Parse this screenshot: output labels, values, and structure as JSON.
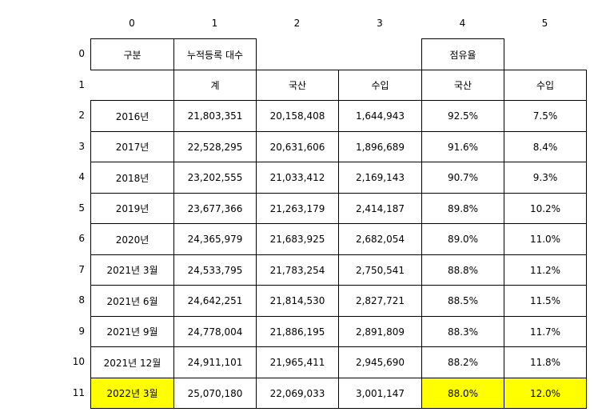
{
  "column_indices": [
    "0",
    "1",
    "2",
    "3",
    "4",
    "5"
  ],
  "row_indices": [
    "0",
    "1",
    "2",
    "3",
    "4",
    "5",
    "6",
    "7",
    "8",
    "9",
    "10",
    "11"
  ],
  "header": {
    "row0": {
      "c0": "구분",
      "c1": "누적등록 대수",
      "c4": "점유율"
    },
    "row1": {
      "c1": "계",
      "c2": "국산",
      "c3": "수입",
      "c4": "국산",
      "c5": "수입"
    }
  },
  "rows": [
    [
      "2016년",
      "21,803,351",
      "20,158,408",
      "1,644,943",
      "92.5%",
      "7.5%"
    ],
    [
      "2017년",
      "22,528,295",
      "20,631,606",
      "1,896,689",
      "91.6%",
      "8.4%"
    ],
    [
      "2018년",
      "23,202,555",
      "21,033,412",
      "2,169,143",
      "90.7%",
      "9.3%"
    ],
    [
      "2019년",
      "23,677,366",
      "21,263,179",
      "2,414,187",
      "89.8%",
      "10.2%"
    ],
    [
      "2020년",
      "24,365,979",
      "21,683,925",
      "2,682,054",
      "89.0%",
      "11.0%"
    ],
    [
      "2021년 3월",
      "24,533,795",
      "21,783,254",
      "2,750,541",
      "88.8%",
      "11.2%"
    ],
    [
      "2021년 6월",
      "24,642,251",
      "21,814,530",
      "2,827,721",
      "88.5%",
      "11.5%"
    ],
    [
      "2021년 9월",
      "24,778,004",
      "21,886,195",
      "2,891,809",
      "88.3%",
      "11.7%"
    ],
    [
      "2021년 12월",
      "24,911,101",
      "21,965,411",
      "2,945,690",
      "88.2%",
      "11.8%"
    ],
    [
      "2022년 3월",
      "25,070,180",
      "22,069,033",
      "3,001,147",
      "88.0%",
      "12.0%"
    ]
  ],
  "highlight_color": "#ffff00",
  "highlighted_cells": [
    [
      11,
      0
    ],
    [
      11,
      4
    ],
    [
      11,
      5
    ]
  ]
}
